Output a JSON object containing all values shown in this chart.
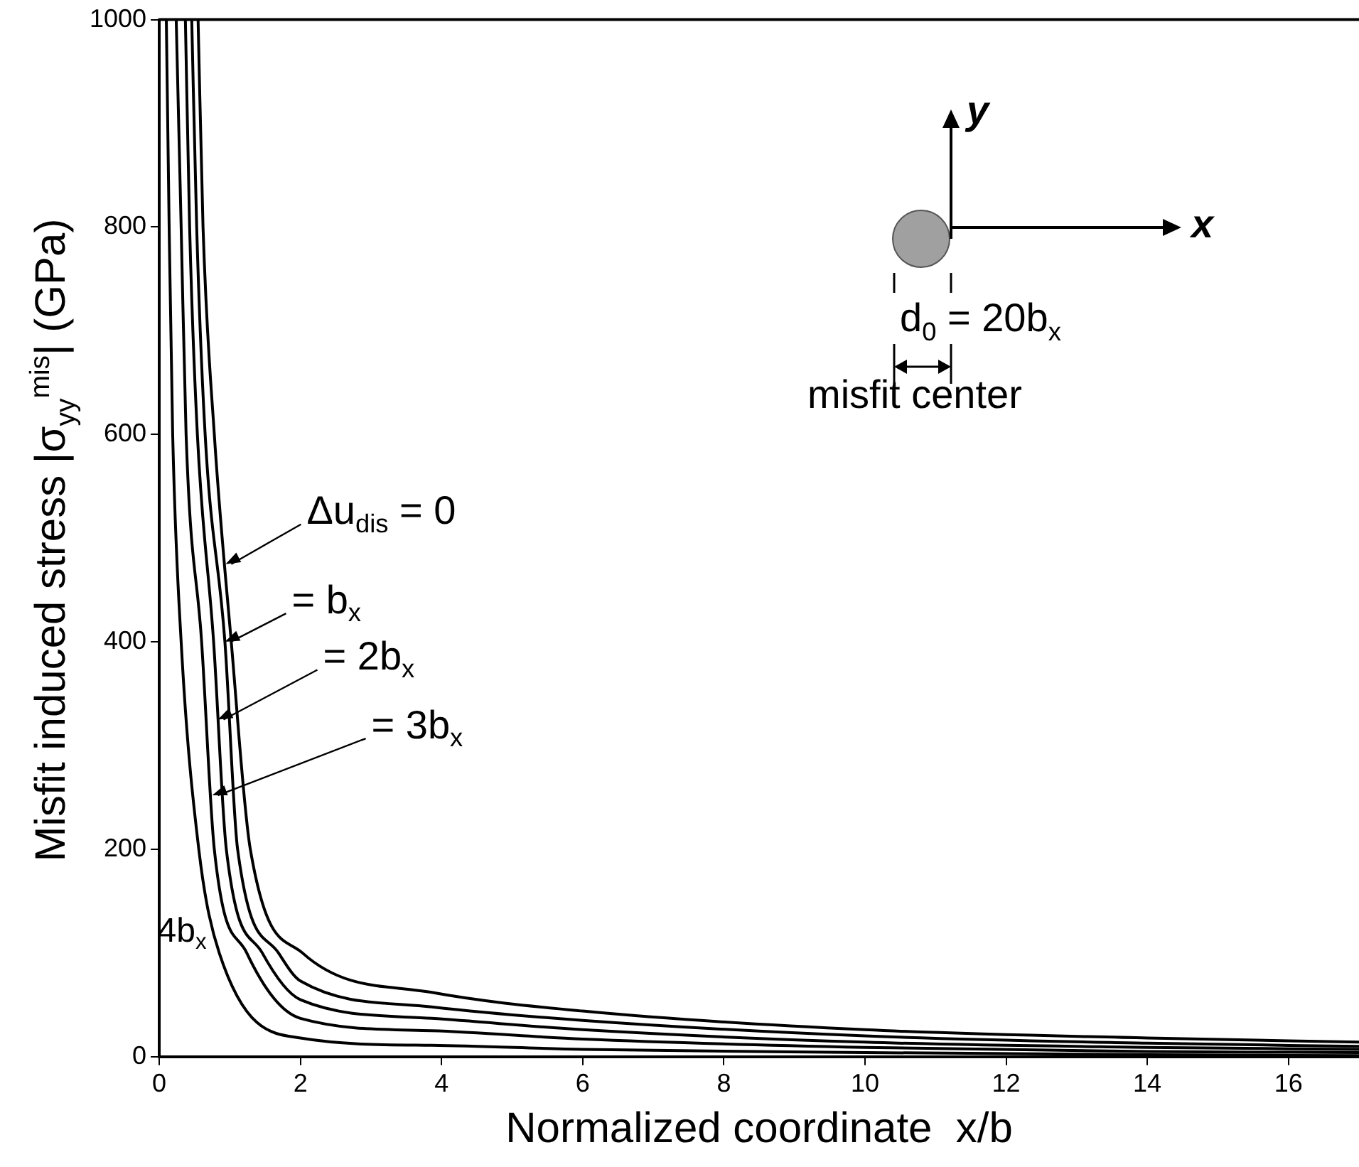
{
  "chart_data": {
    "type": "line",
    "xlabel": "Normalized coordinate  x/b",
    "ylabel": "Misfit induced stress |σ$_{yy}$$^{mis}$| (GPa)",
    "xlim": [
      0,
      17
    ],
    "xticks": [
      0,
      2,
      4,
      6,
      8,
      10,
      12,
      14,
      16
    ],
    "ylim": [
      0,
      1000
    ],
    "yticks": [
      0,
      200,
      400,
      600,
      800,
      1000
    ],
    "grid": false,
    "legend": false,
    "marker": "none",
    "line_style": "solid",
    "series": [
      {
        "color": "#000000",
        "x": [
          0.55,
          0.62,
          0.78,
          1.02,
          1.29,
          2.03,
          3.86,
          6,
          10,
          14,
          17
        ],
        "values": [
          1000,
          800,
          600,
          400,
          200,
          100,
          62,
          44,
          26,
          18,
          14
        ]
      },
      {
        "color": "#000000",
        "x": [
          0.46,
          0.53,
          0.65,
          0.93,
          1.11,
          1.69,
          2,
          3.86,
          6,
          10,
          14,
          17
        ],
        "values": [
          1000,
          800,
          600,
          400,
          200,
          100,
          73,
          48,
          35,
          20,
          13,
          10
        ]
      },
      {
        "color": "#000000",
        "x": [
          0.37,
          0.43,
          0.54,
          0.77,
          0.95,
          1.46,
          2,
          3.86,
          6,
          10,
          14,
          17
        ],
        "values": [
          1000,
          800,
          600,
          400,
          200,
          100,
          55,
          37,
          26,
          14,
          9,
          7
        ]
      },
      {
        "color": "#000000",
        "x": [
          0.24,
          0.31,
          0.38,
          0.6,
          0.78,
          1.24,
          2,
          3.86,
          6,
          10,
          14,
          17
        ],
        "values": [
          1000,
          800,
          600,
          400,
          200,
          100,
          37,
          25,
          17,
          9,
          5,
          4
        ]
      },
      {
        "color": "#000000",
        "x": [
          0.1,
          0.14,
          0.19,
          0.31,
          0.56,
          0.85,
          2,
          3.86,
          6,
          10,
          14,
          17
        ],
        "values": [
          1000,
          800,
          600,
          400,
          200,
          100,
          18,
          11,
          7,
          4,
          2,
          1
        ]
      }
    ],
    "annotations": [
      {
        "text": "Δu$_{dis}$ = 0",
        "x": 0.94,
        "y": 475
      },
      {
        "text": "= b$_{x}$",
        "x": 0.93,
        "y": 400
      },
      {
        "text": "= 2b$_{x}$",
        "x": 0.83,
        "y": 325
      },
      {
        "text": "= 3b$_{x}$",
        "x": 0.75,
        "y": 252
      },
      {
        "text": "4b$_{x}$",
        "x": 0.79,
        "y": 120
      },
      "y",
      "x",
      "d$_{0}$ = 20b$_{x}$",
      "misfit center"
    ]
  }
}
